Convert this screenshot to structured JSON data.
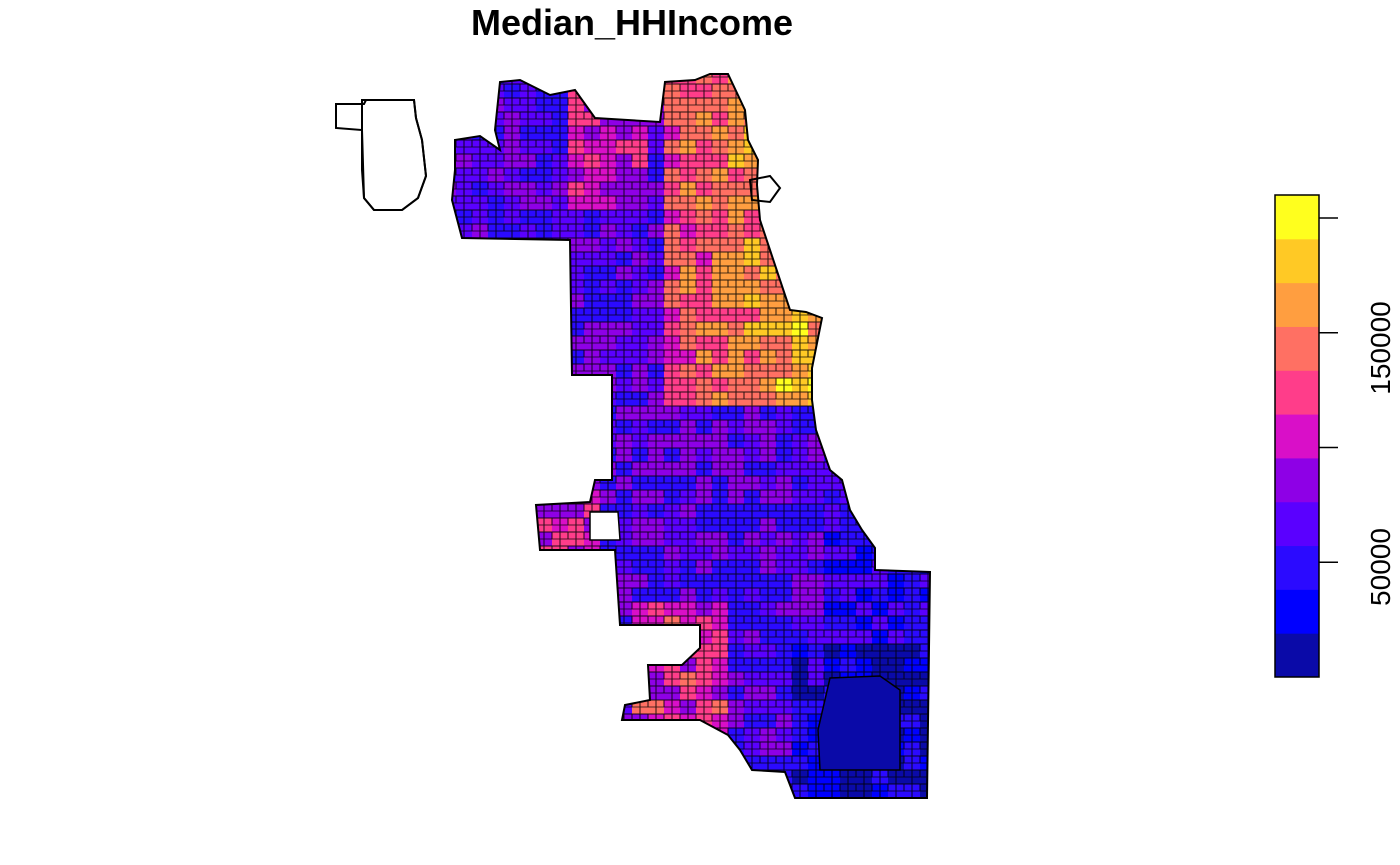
{
  "map": {
    "title": "Median_HHIncome",
    "variable": "Median_HHIncome",
    "tract_outline_color": "#000000",
    "missing_fill": "#ffffff"
  },
  "legend": {
    "palette": [
      "#0A0AA8",
      "#0000FF",
      "#2B0AFF",
      "#5A00FF",
      "#8E00E6",
      "#D90FC8",
      "#FF3D8A",
      "#FF7063",
      "#FF9E40",
      "#FFC925",
      "#FFFF1E"
    ],
    "tick_labels": [
      "50000",
      "150000"
    ],
    "placement": "right",
    "orientation": "vertical"
  },
  "chart_data": {
    "type": "choropleth",
    "title": "Median_HHIncome",
    "variable": "Median_HHIncome",
    "legend_breaks": [
      0,
      20000,
      30000,
      50000,
      70000,
      90000,
      110000,
      130000,
      150000,
      170000,
      190000,
      210000
    ],
    "legend_ticks": [
      50000,
      100000,
      150000,
      200000
    ],
    "legend_tick_labels": [
      "50000",
      "150000"
    ],
    "color_ramp": [
      "#0A0AA8",
      "#0000FF",
      "#2B0AFF",
      "#5A00FF",
      "#8E00E6",
      "#D90FC8",
      "#FF3D8A",
      "#FF7063",
      "#FF9E40",
      "#FFC925",
      "#FFFF1E"
    ]
  }
}
